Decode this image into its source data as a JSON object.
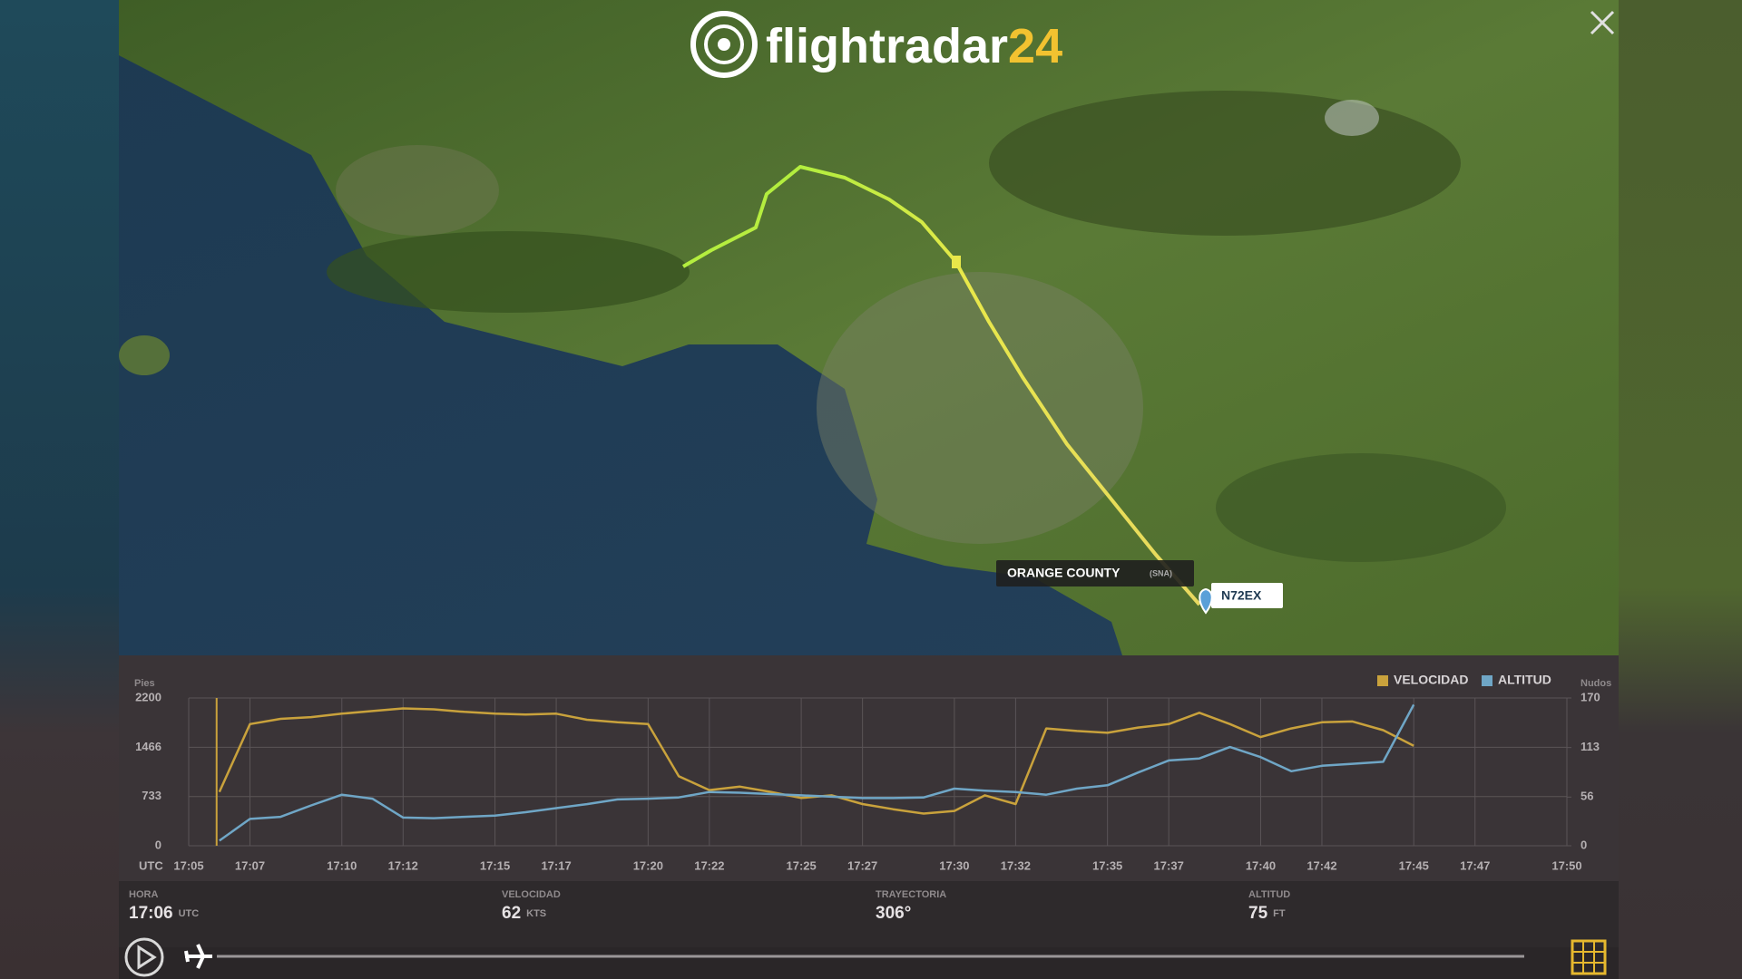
{
  "header": {
    "logo": "flightradar",
    "logo_suffix": "24"
  },
  "map": {
    "airport": "ORANGE COUNTY",
    "airport_code": "(SNA)",
    "aircraft": "N72EX"
  },
  "chart_data": {
    "type": "line",
    "y_label": "Pies",
    "y2_label": "Nudos",
    "x_prefix": "UTC",
    "x": [
      "17:06",
      "17:07",
      "17:08",
      "17:09",
      "17:10",
      "17:11",
      "17:12",
      "17:13",
      "17:14",
      "17:15",
      "17:16",
      "17:17",
      "17:18",
      "17:19",
      "17:20",
      "17:21",
      "17:22",
      "17:23",
      "17:24",
      "17:25",
      "17:26",
      "17:27",
      "17:28",
      "17:29",
      "17:30",
      "17:31",
      "17:32",
      "17:33",
      "17:34",
      "17:35",
      "17:36",
      "17:37",
      "17:38",
      "17:39",
      "17:40",
      "17:41",
      "17:42",
      "17:43",
      "17:44",
      "17:45"
    ],
    "series": [
      {
        "name": "VELOCIDAD",
        "color": "#c9a23c",
        "axis": "y2",
        "values": [
          62,
          140,
          146,
          148,
          152,
          155,
          158,
          157,
          154,
          152,
          151,
          152,
          145,
          142,
          140,
          80,
          64,
          68,
          62,
          55,
          58,
          48,
          42,
          37,
          40,
          58,
          48,
          135,
          132,
          130,
          136,
          140,
          153,
          140,
          125,
          135,
          142,
          143,
          133,
          115
        ]
      },
      {
        "name": "ALTITUD",
        "color": "#6fa6c6",
        "values": [
          75,
          400,
          430,
          600,
          760,
          700,
          420,
          410,
          430,
          450,
          500,
          560,
          620,
          690,
          700,
          720,
          800,
          790,
          770,
          750,
          730,
          710,
          710,
          720,
          850,
          820,
          800,
          760,
          850,
          900,
          1090,
          1270,
          1300,
          1470,
          1320,
          1110,
          1190,
          1220,
          1250,
          2100
        ]
      }
    ],
    "xlim": [
      "17:05",
      "17:50"
    ],
    "xticks": [
      "17:05",
      "17:07",
      "17:10",
      "17:12",
      "17:15",
      "17:17",
      "17:20",
      "17:22",
      "17:25",
      "17:27",
      "17:30",
      "17:32",
      "17:35",
      "17:37",
      "17:40",
      "17:42",
      "17:45",
      "17:47",
      "17:50"
    ],
    "ylim": [
      0,
      2200
    ],
    "yticks": [
      0,
      733,
      1466,
      2200
    ],
    "y2lim": [
      0,
      170
    ],
    "y2ticks": [
      0,
      56,
      113,
      170
    ],
    "grid": true,
    "legend": "top-right"
  },
  "info": [
    {
      "label": "HORA",
      "value": "17:06",
      "unit": "UTC"
    },
    {
      "label": "VELOCIDAD",
      "value": "62",
      "unit": "KTS"
    },
    {
      "label": "TRAYECTORIA",
      "value": "306°"
    },
    {
      "label": "ALTITUD",
      "value": "75",
      "unit": "FT"
    }
  ]
}
